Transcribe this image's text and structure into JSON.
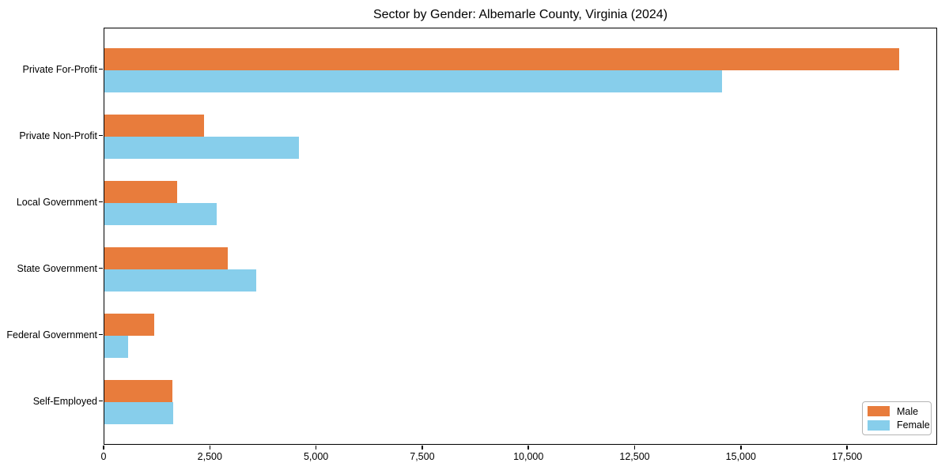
{
  "chart_data": {
    "type": "bar",
    "orientation": "horizontal",
    "title": "Sector by Gender: Albemarle County, Virginia (2024)",
    "categories": [
      "Private For-Profit",
      "Private Non-Profit",
      "Local Government",
      "State Government",
      "Federal Government",
      "Self-Employed"
    ],
    "series": [
      {
        "name": "Male",
        "color": "#e87c3c",
        "values": [
          18700,
          2350,
          1720,
          2900,
          1170,
          1600
        ]
      },
      {
        "name": "Female",
        "color": "#87ceeb",
        "values": [
          14530,
          4570,
          2640,
          3570,
          560,
          1620
        ]
      }
    ],
    "xlim": [
      0,
      19620
    ],
    "xticks": [
      0,
      2500,
      5000,
      7500,
      10000,
      12500,
      15000,
      17500
    ],
    "xtick_labels": [
      "0",
      "2,500",
      "5,000",
      "7,500",
      "10,000",
      "12,500",
      "15,000",
      "17,500"
    ],
    "ylabel": "",
    "xlabel": "",
    "grid": false,
    "legend": {
      "position": "lower-right",
      "entries": [
        {
          "label": "Male",
          "color": "#e87c3c"
        },
        {
          "label": "Female",
          "color": "#87ceeb"
        }
      ]
    },
    "colors": {
      "axis": "#000000",
      "text": "#000000",
      "background": "#ffffff"
    }
  }
}
